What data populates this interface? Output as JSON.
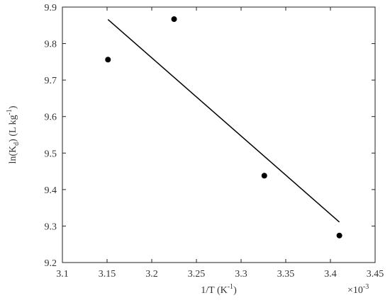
{
  "chart_data": {
    "type": "scatter",
    "x_label_parts": [
      "1/T (K",
      "-1",
      ")"
    ],
    "y_label_parts": [
      "ln(K",
      "d",
      ") (L kg",
      "-1",
      ")"
    ],
    "x_multiplier_parts": [
      "×10",
      "-3"
    ],
    "series": [
      {
        "color": "#000000",
        "x": [
          3.151,
          3.225,
          3.326,
          3.41
        ],
        "values": [
          9.756,
          9.867,
          9.438,
          9.274
        ]
      }
    ],
    "fit_line": {
      "color": "#000000",
      "x": [
        3.151,
        3.41
      ],
      "values": [
        9.866,
        9.311
      ]
    },
    "xlim": [
      3.1,
      3.45
    ],
    "xticks": [
      3.1,
      3.15,
      3.2,
      3.25,
      3.3,
      3.35,
      3.4,
      3.45
    ],
    "ylim": [
      9.2,
      9.9
    ],
    "yticks": [
      9.2,
      9.3,
      9.4,
      9.5,
      9.6,
      9.7,
      9.8,
      9.9
    ],
    "grid": false
  }
}
